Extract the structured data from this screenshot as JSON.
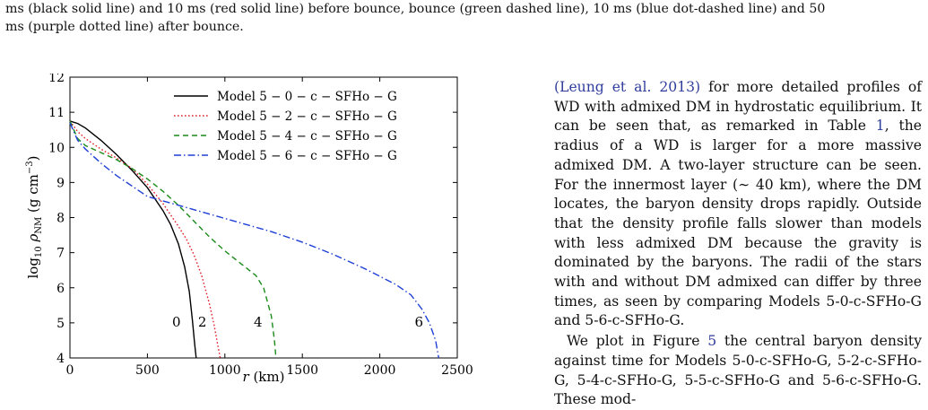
{
  "caption": {
    "line1": "ms (black solid line) and 10 ms (red solid line) before bounce, bounce (green dashed line), 10 ms (blue dot-dashed line) and 50",
    "line2": "ms (purple dotted line) after bounce."
  },
  "chart_data": {
    "type": "line",
    "xlabel": "r (km)",
    "ylabel": "log10 ρNM (g cm−3)",
    "xlim": [
      0,
      2500
    ],
    "ylim": [
      4,
      12
    ],
    "x_ticks": [
      "0",
      "500",
      "1000",
      "1500",
      "2000",
      "2500"
    ],
    "y_ticks": [
      "4",
      "5",
      "6",
      "7",
      "8",
      "9",
      "10",
      "11",
      "12"
    ],
    "legend_position": "top-right",
    "series": [
      {
        "name": "Model 5 − 0 − c − SFHo − G",
        "color": "#000000",
        "dash": "",
        "end_label": "0",
        "x": [
          0,
          50,
          100,
          200,
          300,
          400,
          500,
          600,
          650,
          700,
          740,
          770,
          790,
          805,
          815
        ],
        "y": [
          10.75,
          10.68,
          10.55,
          10.2,
          9.8,
          9.35,
          8.85,
          8.2,
          7.8,
          7.25,
          6.6,
          5.9,
          5.1,
          4.4,
          4.0
        ]
      },
      {
        "name": "Model 5 − 2 − c − SFHo − G",
        "color": "#e0202a",
        "dash": "1.6,2.4",
        "end_label": "2",
        "x": [
          0,
          50,
          100,
          200,
          300,
          400,
          500,
          600,
          700,
          750,
          800,
          850,
          900,
          930,
          955,
          970
        ],
        "y": [
          10.75,
          10.45,
          10.25,
          9.95,
          9.7,
          9.4,
          8.95,
          8.4,
          7.75,
          7.4,
          6.95,
          6.35,
          5.55,
          4.95,
          4.35,
          4.0
        ]
      },
      {
        "name": "Model 5 − 4 − c − SFHo − G",
        "color": "#1a8a1a",
        "dash": "6,4",
        "end_label": "4",
        "x": [
          0,
          50,
          100,
          200,
          300,
          400,
          500,
          600,
          700,
          800,
          900,
          1000,
          1100,
          1200,
          1250,
          1300,
          1320,
          1330
        ],
        "y": [
          10.75,
          10.25,
          10.05,
          9.85,
          9.65,
          9.4,
          9.1,
          8.75,
          8.35,
          7.9,
          7.45,
          7.05,
          6.7,
          6.35,
          6.0,
          5.2,
          4.5,
          4.0
        ]
      },
      {
        "name": "Model 5 − 6 − c − SFHo − G",
        "color": "#1f3fd6",
        "dash": "8,3,1.5,3",
        "end_label": "6",
        "x": [
          0,
          50,
          100,
          200,
          300,
          400,
          500,
          700,
          900,
          1100,
          1300,
          1500,
          1700,
          1900,
          2100,
          2200,
          2270,
          2320,
          2360,
          2380
        ],
        "y": [
          10.7,
          10.2,
          9.95,
          9.55,
          9.2,
          8.9,
          8.6,
          8.35,
          8.1,
          7.85,
          7.6,
          7.3,
          6.95,
          6.55,
          6.1,
          5.8,
          5.4,
          5.0,
          4.5,
          4.0
        ]
      }
    ]
  },
  "text_column": {
    "p1_ref": "(Leung et al. 2013)",
    "p1_a": " for more detailed profiles of WD with admixed DM in hydrostatic equilibrium. It can be seen that, as remarked in Table ",
    "p1_table_ref": "1",
    "p1_b": ", the radius of a WD is larger for a more massive admixed DM. A two-layer structure can be seen. For the innermost layer (∼ 40 km), where the DM locates, the baryon density drops rapidly. Outside that the density profile falls slower than models with less admixed DM because the gravity is dominated by the baryons. The radii of the stars with and without DM admixed can differ by three times, as seen by comparing Models 5-0-c-SFHo-G and 5-6-c-SFHo-G.",
    "p2_a": "We plot in Figure ",
    "p2_fig_ref": "5",
    "p2_b": " the central baryon density against time for Models 5-0-c-SFHo-G, 5-2-c-SFHo-G, 5-4-c-SFHo-G, 5-5-c-SFHo-G and 5-6-c-SFHo-G. These mod-"
  }
}
